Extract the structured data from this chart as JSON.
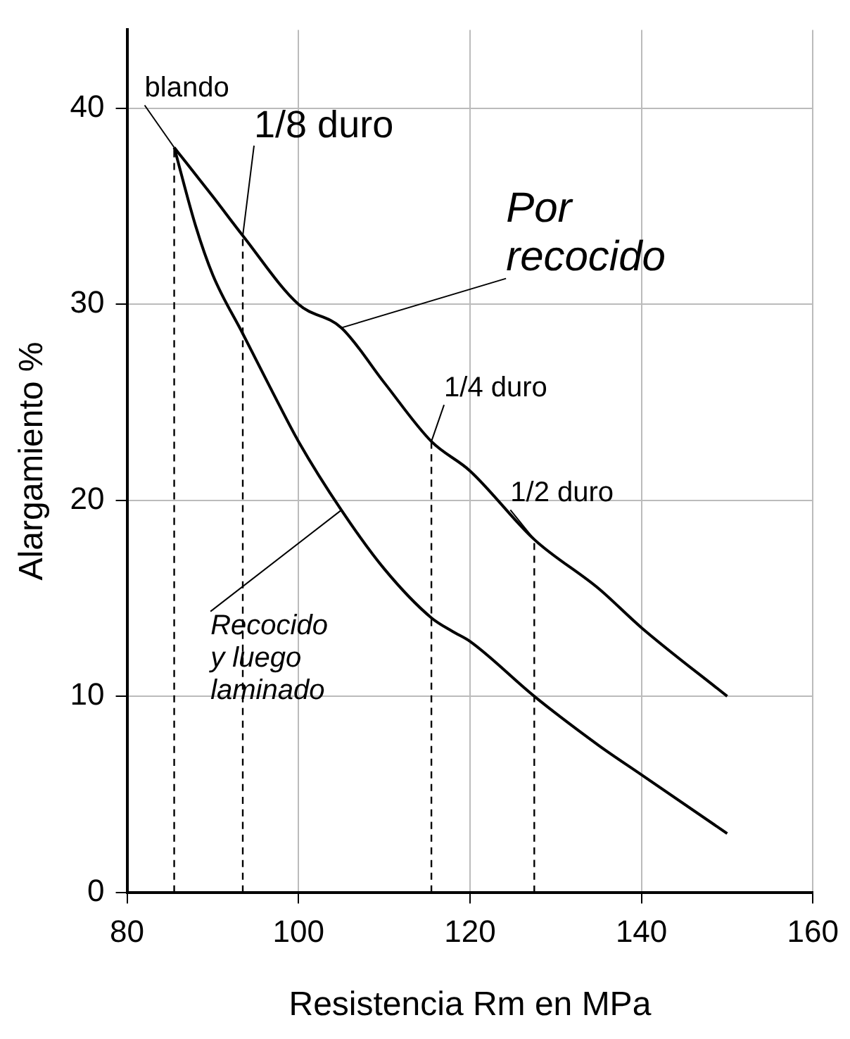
{
  "chart_data": {
    "type": "line",
    "xlabel": "Resistencia Rm en MPa",
    "ylabel": "Alargamiento %",
    "xlim": [
      80,
      160
    ],
    "xticks": [
      80,
      100,
      120,
      140,
      160
    ],
    "ylim": [
      0,
      44
    ],
    "yticks": [
      0,
      10,
      20,
      30,
      40
    ],
    "grid": true,
    "legend": false,
    "marker": "none",
    "line_style": "solid",
    "series": [
      {
        "color": "#000000",
        "x": [
          85.5,
          90,
          93.5,
          100,
          105,
          110,
          115.5,
          120,
          127.5,
          135,
          140,
          150
        ],
        "values": [
          38,
          35.5,
          33.5,
          30,
          28.8,
          26,
          23,
          21.5,
          18,
          15.5,
          13.5,
          10
        ]
      },
      {
        "color": "#000000",
        "x": [
          85.5,
          88,
          90,
          93.5,
          97,
          100,
          105,
          110,
          115.5,
          118,
          120,
          127.5,
          135,
          140,
          150
        ],
        "values": [
          38,
          34,
          31.5,
          28.5,
          25.5,
          23,
          19.5,
          16.5,
          14,
          13.3,
          12.8,
          10,
          7.5,
          6,
          3
        ]
      },
      {
        "color": "#000000",
        "line_style": "dashed",
        "x": [
          85.5,
          85.5
        ],
        "values": [
          0,
          38
        ]
      },
      {
        "color": "#000000",
        "line_style": "dashed",
        "x": [
          93.5,
          93.5
        ],
        "values": [
          0,
          33.5
        ]
      },
      {
        "color": "#000000",
        "line_style": "dashed",
        "x": [
          115.5,
          115.5
        ],
        "values": [
          0,
          23
        ]
      },
      {
        "color": "#000000",
        "line_style": "dashed",
        "x": [
          127.5,
          127.5
        ],
        "values": [
          0,
          18
        ]
      }
    ],
    "annotations": [
      {
        "text": "blando",
        "x": 85.5,
        "y": 38
      },
      {
        "text": "1/8 duro",
        "x": 93.5,
        "y": 33.5
      },
      {
        "text": "Por\nrecocido",
        "x": 105,
        "y": 28.8
      },
      {
        "text": "1/4 duro",
        "x": 115.5,
        "y": 23
      },
      {
        "text": "1/2 duro",
        "x": 127.5,
        "y": 18
      },
      {
        "text": "Recocido\ny luego\nlaminado",
        "x": 105,
        "y": 19.5
      }
    ]
  }
}
